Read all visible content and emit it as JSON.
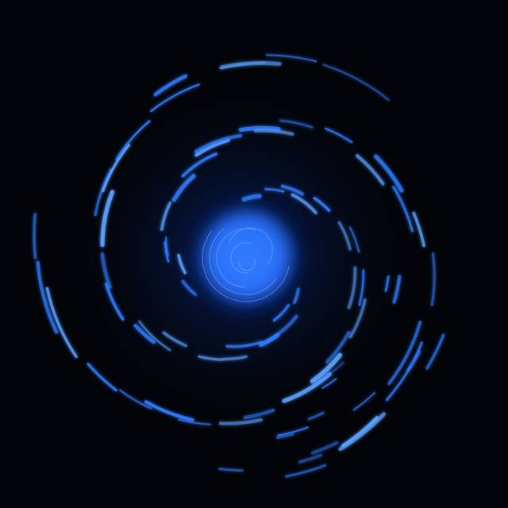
{
  "image": {
    "subject": "swirl",
    "colors": {
      "background": "#020408",
      "core": "#3f8cff",
      "core_mid": "#1f62f2",
      "streak": "#2f7bff",
      "streak_bright": "#5aa0ff",
      "glow": "#0b2a8a"
    }
  }
}
